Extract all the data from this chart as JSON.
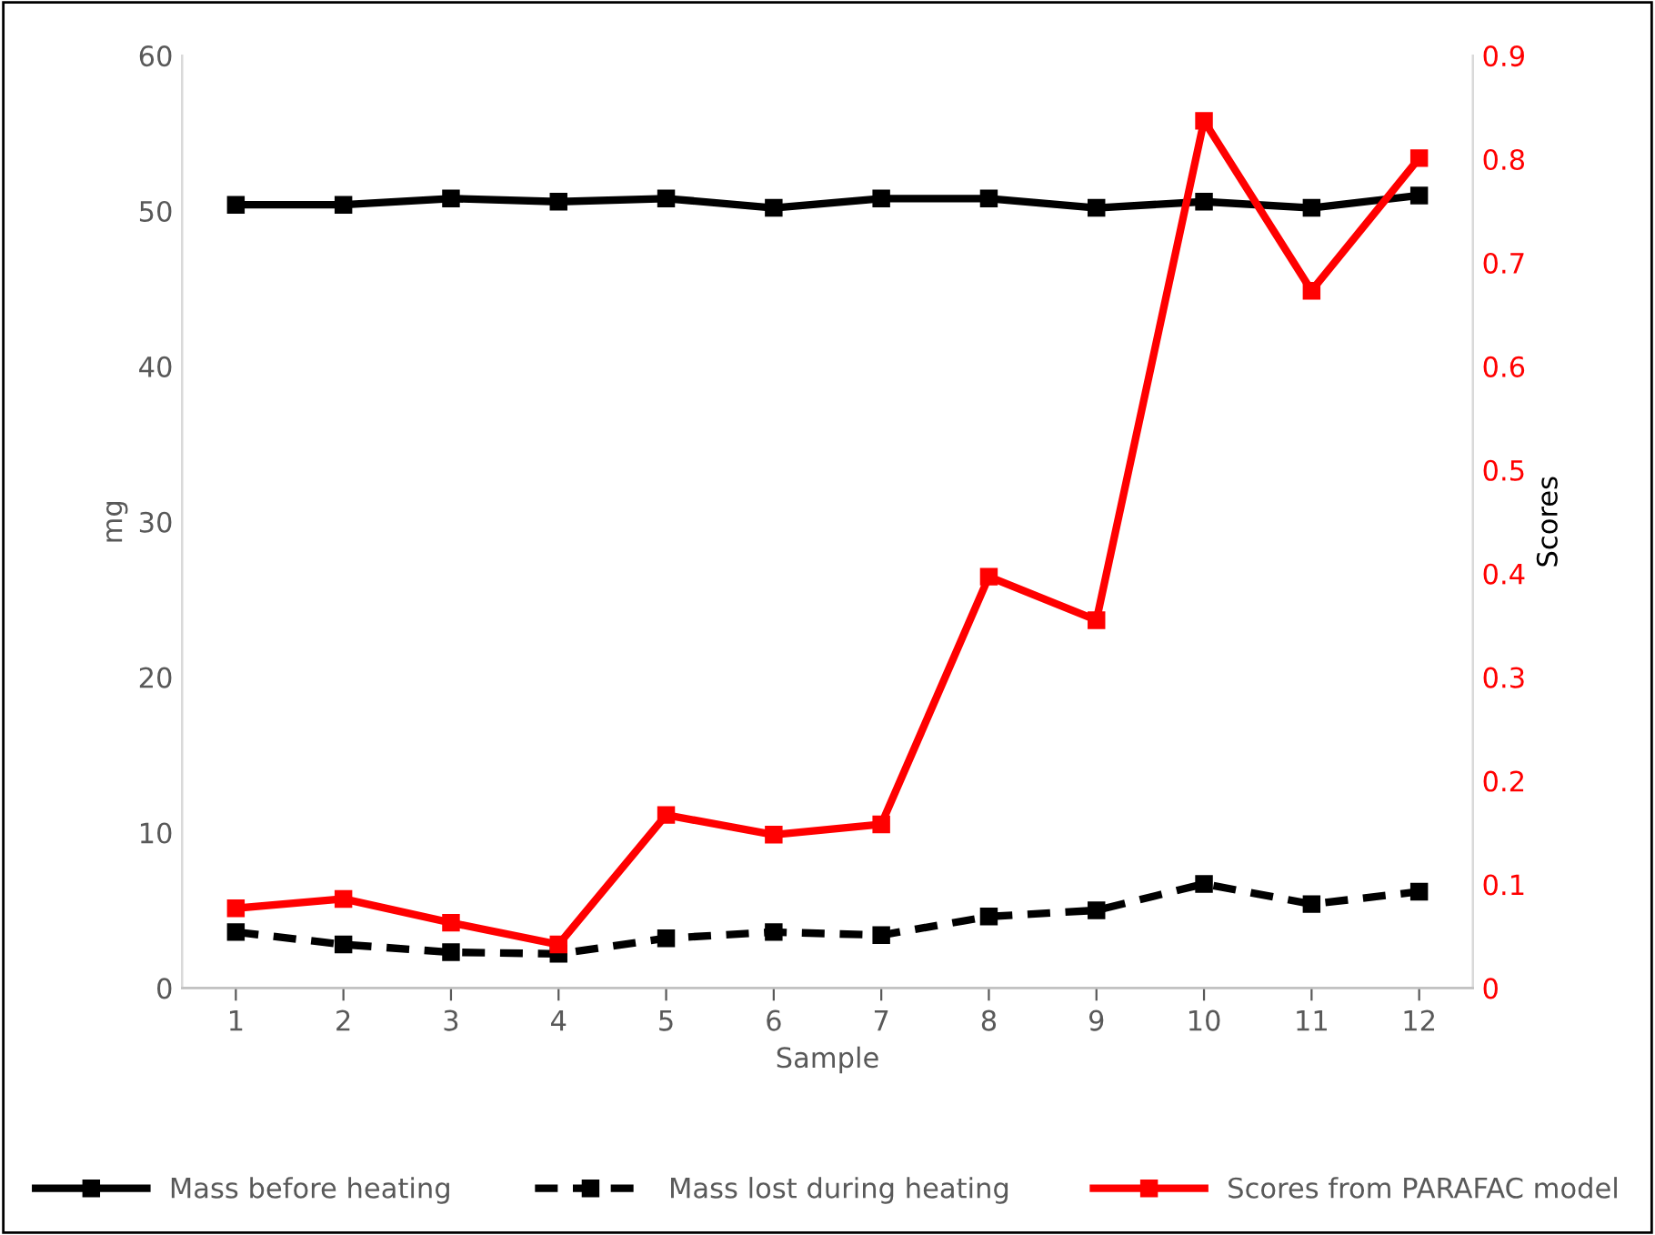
{
  "chart_data": {
    "type": "line",
    "xlabel": "Sample",
    "ylabel": "mg",
    "y2label": "Scores",
    "categories": [
      "1",
      "2",
      "3",
      "4",
      "5",
      "6",
      "7",
      "8",
      "9",
      "10",
      "11",
      "12"
    ],
    "series": [
      {
        "name": "Mass before heating",
        "color": "#000000",
        "line_style": "solid",
        "values": [
          50.4,
          50.4,
          50.8,
          50.6,
          50.8,
          50.2,
          50.8,
          50.8,
          50.2,
          50.6,
          50.2,
          51.0
        ]
      },
      {
        "name": "Mass lost during heating",
        "color": "#000000",
        "line_style": "dashed",
        "values": [
          3.6,
          2.8,
          2.3,
          2.2,
          3.2,
          3.6,
          3.4,
          4.6,
          5.0,
          6.7,
          5.4,
          6.2
        ]
      },
      {
        "name": "Scores from PARAFAC model",
        "color": "#ff0000",
        "line_style": "solid",
        "axis": "y2",
        "values": [
          0.077,
          0.086,
          0.063,
          0.042,
          0.167,
          0.148,
          0.158,
          0.397,
          0.355,
          0.837,
          0.673,
          0.801
        ]
      }
    ],
    "ylim": [
      0,
      60
    ],
    "yticks": [
      0,
      10,
      20,
      30,
      40,
      50,
      60
    ],
    "y2lim": [
      0,
      0.9
    ],
    "y2ticks": [
      {
        "value": 0,
        "label": "0"
      },
      {
        "value": 0.1,
        "label": "0.1"
      },
      {
        "value": 0.2,
        "label": "0.2"
      },
      {
        "value": 0.3,
        "label": "0.3"
      },
      {
        "value": 0.4,
        "label": "0.4"
      },
      {
        "value": 0.5,
        "label": "0.5"
      },
      {
        "value": 0.6,
        "label": "0.6"
      },
      {
        "value": 0.7,
        "label": "0.7"
      },
      {
        "value": 0.8,
        "label": "0.8"
      },
      {
        "value": 0.9,
        "label": "0.9"
      }
    ],
    "marker": "square",
    "grid": false,
    "legend": "bottom"
  }
}
